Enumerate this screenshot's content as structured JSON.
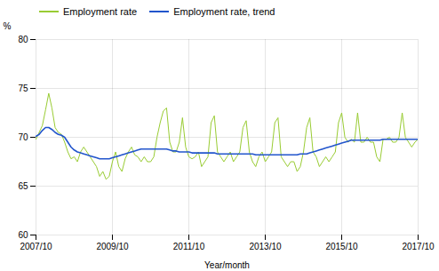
{
  "chart_data": {
    "type": "line",
    "xlabel": "Year/month",
    "ylabel": "%",
    "categories": [
      "2007/10",
      null,
      null,
      null,
      null,
      null,
      null,
      null,
      null,
      null,
      null,
      null,
      null,
      null,
      null,
      null,
      null,
      null,
      null,
      null,
      null,
      null,
      null,
      null,
      "2009/10",
      null,
      null,
      null,
      null,
      null,
      null,
      null,
      null,
      null,
      null,
      null,
      null,
      null,
      null,
      null,
      null,
      null,
      null,
      null,
      null,
      null,
      null,
      null,
      "2011/10",
      null,
      null,
      null,
      null,
      null,
      null,
      null,
      null,
      null,
      null,
      null,
      null,
      null,
      null,
      null,
      null,
      null,
      null,
      null,
      null,
      null,
      null,
      null,
      "2013/10",
      null,
      null,
      null,
      null,
      null,
      null,
      null,
      null,
      null,
      null,
      null,
      null,
      null,
      null,
      null,
      null,
      null,
      null,
      null,
      null,
      null,
      null,
      null,
      "2015/10",
      null,
      null,
      null,
      null,
      null,
      null,
      null,
      null,
      null,
      null,
      null,
      null,
      null,
      null,
      null,
      null,
      null,
      null,
      null,
      null,
      null,
      null,
      null,
      "2017/10"
    ],
    "series": [
      {
        "name": "Employment rate",
        "color": "#99cc33",
        "values": [
          69.8,
          70.5,
          71.2,
          72.8,
          74.5,
          73.0,
          71.0,
          70.5,
          70.3,
          69.5,
          68.5,
          67.8,
          68.0,
          67.5,
          68.5,
          69.0,
          68.5,
          68.0,
          67.5,
          67.0,
          66.0,
          66.5,
          65.7,
          66.0,
          67.5,
          68.5,
          67.0,
          66.5,
          67.8,
          68.5,
          69.0,
          68.2,
          68.0,
          67.5,
          68.0,
          67.5,
          67.5,
          68.0,
          70.0,
          71.5,
          72.7,
          73.0,
          69.5,
          68.5,
          68.5,
          69.5,
          72.0,
          69.0,
          68.0,
          67.8,
          68.0,
          68.5,
          67.0,
          67.5,
          68.0,
          71.5,
          72.2,
          68.5,
          68.0,
          67.5,
          68.0,
          68.5,
          67.5,
          68.0,
          68.5,
          71.0,
          71.7,
          68.5,
          67.5,
          67.0,
          68.0,
          68.5,
          67.5,
          68.0,
          68.5,
          71.5,
          72.0,
          68.0,
          67.5,
          67.0,
          67.5,
          67.5,
          66.5,
          67.0,
          68.5,
          71.0,
          72.0,
          68.5,
          68.0,
          67.0,
          67.5,
          68.0,
          67.5,
          68.0,
          68.5,
          71.5,
          72.5,
          70.0,
          69.5,
          69.8,
          69.5,
          72.5,
          69.5,
          69.5,
          70.0,
          69.5,
          69.5,
          68.0,
          67.5,
          69.8,
          69.8,
          70.0,
          69.5,
          69.5,
          70.0,
          72.5,
          70.0,
          69.5,
          69.0,
          69.5,
          69.8
        ]
      },
      {
        "name": "Employment rate, trend",
        "color": "#2255cc",
        "values": [
          70.1,
          70.3,
          70.7,
          71.0,
          71.0,
          70.8,
          70.5,
          70.3,
          70.2,
          70.0,
          69.5,
          69.0,
          68.7,
          68.5,
          68.4,
          68.3,
          68.2,
          68.1,
          68.0,
          67.9,
          67.8,
          67.8,
          67.8,
          67.8,
          67.9,
          68.0,
          68.1,
          68.2,
          68.3,
          68.4,
          68.5,
          68.6,
          68.7,
          68.8,
          68.8,
          68.8,
          68.8,
          68.8,
          68.8,
          68.8,
          68.8,
          68.8,
          68.7,
          68.6,
          68.6,
          68.5,
          68.5,
          68.5,
          68.5,
          68.4,
          68.4,
          68.4,
          68.4,
          68.4,
          68.4,
          68.4,
          68.4,
          68.3,
          68.3,
          68.3,
          68.3,
          68.3,
          68.3,
          68.3,
          68.3,
          68.3,
          68.3,
          68.3,
          68.3,
          68.2,
          68.2,
          68.2,
          68.2,
          68.2,
          68.2,
          68.2,
          68.2,
          68.2,
          68.2,
          68.2,
          68.2,
          68.2,
          68.2,
          68.3,
          68.3,
          68.3,
          68.4,
          68.5,
          68.6,
          68.7,
          68.8,
          68.9,
          69.0,
          69.1,
          69.2,
          69.3,
          69.4,
          69.5,
          69.6,
          69.7,
          69.7,
          69.7,
          69.7,
          69.7,
          69.7,
          69.7,
          69.7,
          69.7,
          69.7,
          69.8,
          69.8,
          69.8,
          69.8,
          69.8,
          69.8,
          69.8,
          69.8,
          69.8,
          69.8,
          69.8,
          69.8
        ]
      }
    ],
    "ylim": [
      60,
      80
    ],
    "yticks": [
      60,
      65,
      70,
      75,
      80
    ],
    "grid": true,
    "legend": "upper left"
  }
}
